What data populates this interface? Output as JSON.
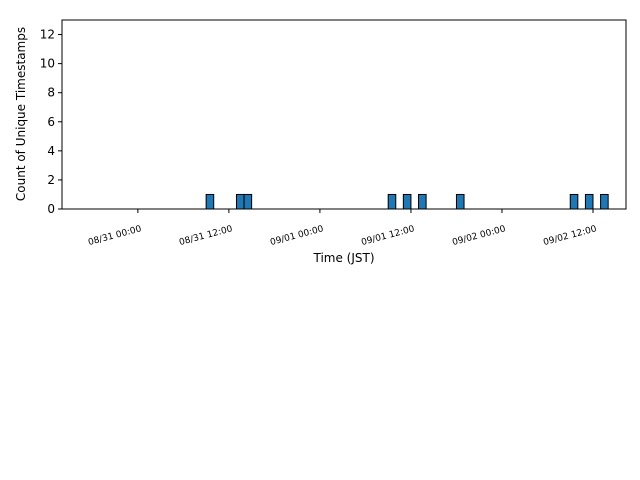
{
  "chart_data": {
    "type": "histogram",
    "xlabel": "Time (JST)",
    "ylabel": "Count of Unique Timestamps",
    "bins": [
      9,
      10,
      11,
      12,
      13,
      14,
      15,
      16,
      17,
      18,
      19,
      20,
      21,
      22,
      23,
      24,
      25,
      26,
      27,
      28,
      29,
      30,
      31,
      32,
      33,
      34,
      35,
      36,
      37,
      38,
      39,
      40,
      41,
      42,
      43,
      44,
      45,
      46,
      47,
      48,
      49,
      50,
      51,
      52,
      53,
      54,
      55,
      56,
      57,
      58,
      59,
      60,
      61,
      62
    ],
    "values": [
      1,
      0,
      0,
      0,
      1,
      1,
      0,
      0,
      0,
      0,
      0,
      0,
      0,
      0,
      0,
      0,
      0,
      0,
      0,
      0,
      0,
      0,
      0,
      0,
      1,
      0,
      1,
      0,
      1,
      0,
      0,
      0,
      0,
      1,
      0,
      0,
      0,
      0,
      0,
      0,
      0,
      0,
      0,
      0,
      0,
      0,
      0,
      0,
      1,
      0,
      1,
      0,
      1
    ],
    "color": "#1f77b4",
    "edgecolor": "#000000",
    "xlim": [
      -10,
      64.35
    ],
    "xticks": [
      {
        "value": 0,
        "label": "08/31 00:00"
      },
      {
        "value": 12,
        "label": "08/31 12:00"
      },
      {
        "value": 24,
        "label": "09/01 00:00"
      },
      {
        "value": 36,
        "label": "09/01 12:00"
      },
      {
        "value": 48,
        "label": "09/02 00:00"
      },
      {
        "value": 60,
        "label": "09/02 12:00"
      }
    ],
    "ylim": [
      0,
      13
    ],
    "yticks": [
      0,
      2,
      4,
      6,
      8,
      10,
      12
    ]
  }
}
